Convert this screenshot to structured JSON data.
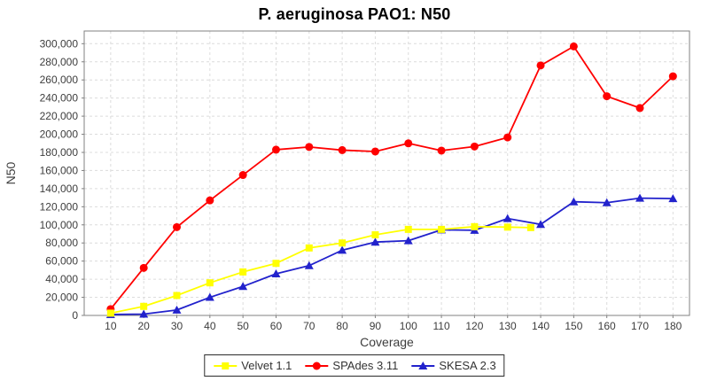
{
  "chart_data": {
    "type": "line",
    "title": "P. aeruginosa PAO1: N50",
    "xlabel": "Coverage",
    "ylabel": "N50",
    "xlim": [
      2,
      185
    ],
    "ylim": [
      0,
      314000
    ],
    "x_ticks": [
      10,
      20,
      30,
      40,
      50,
      60,
      70,
      80,
      90,
      100,
      110,
      120,
      130,
      140,
      150,
      160,
      170,
      180
    ],
    "y_ticks": [
      0,
      20000,
      40000,
      60000,
      80000,
      100000,
      120000,
      140000,
      160000,
      180000,
      200000,
      220000,
      240000,
      260000,
      280000,
      300000
    ],
    "grid": "dashed",
    "legend_position": "bottom-center",
    "series": [
      {
        "name": "Velvet 1.1",
        "color": "#ffff00",
        "marker": "square",
        "x": [
          10,
          20,
          30,
          40,
          50,
          60,
          70,
          80,
          90,
          100,
          110,
          120,
          130,
          137
        ],
        "values": [
          2500,
          10000,
          22000,
          36000,
          48000,
          57500,
          74500,
          80000,
          89000,
          95000,
          95000,
          98000,
          97500,
          97000
        ]
      },
      {
        "name": "SPAdes 3.11",
        "color": "#ff0000",
        "marker": "circle",
        "x": [
          10,
          20,
          30,
          40,
          50,
          60,
          70,
          80,
          90,
          100,
          110,
          120,
          130,
          140,
          150,
          160,
          170,
          180
        ],
        "values": [
          7000,
          52500,
          97500,
          127000,
          155000,
          183000,
          186000,
          182500,
          181000,
          190000,
          182000,
          186500,
          196500,
          276000,
          297000,
          242000,
          229000,
          264000
        ]
      },
      {
        "name": "SKESA 2.3",
        "color": "#2222cc",
        "marker": "triangle",
        "x": [
          10,
          20,
          30,
          40,
          50,
          60,
          70,
          80,
          90,
          100,
          110,
          120,
          130,
          140,
          150,
          160,
          170,
          180
        ],
        "values": [
          1000,
          1500,
          6000,
          20000,
          32000,
          46000,
          55000,
          72000,
          81000,
          82500,
          94500,
          94000,
          107000,
          100500,
          125500,
          124500,
          129500,
          129000
        ]
      }
    ],
    "colors": {
      "background": "#ffffff",
      "plot_background": "#ffffff",
      "gridline": "#dcdcdc",
      "plot_border": "#808080",
      "tick_text": "#3d3d3d",
      "title_text": "#000000"
    }
  }
}
